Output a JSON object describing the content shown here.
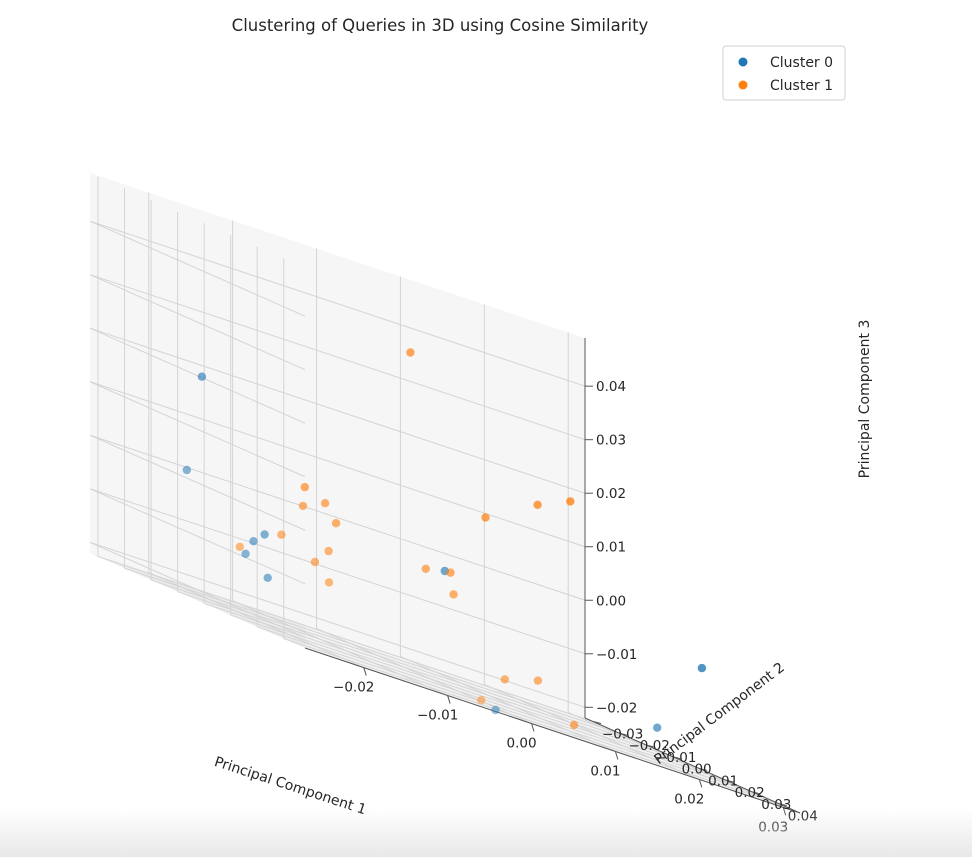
{
  "chart_data": {
    "type": "scatter",
    "title": "Clustering of Queries in 3D using Cosine Similarity",
    "xlabel": "Principal Component 1",
    "ylabel": "Principal Component 2",
    "zlabel": "Principal Component 3",
    "x_ticks": [
      "−0.02",
      "−0.01",
      "0.00",
      "0.01",
      "0.02",
      "0.03"
    ],
    "y_ticks": [
      "−0.03",
      "−0.02",
      "−0.01",
      "0.00",
      "0.01",
      "0.02",
      "0.03",
      "0.04"
    ],
    "z_ticks": [
      "−0.02",
      "−0.01",
      "0.00",
      "0.01",
      "0.02",
      "0.03",
      "0.04"
    ],
    "xlim": [
      -0.027,
      0.032
    ],
    "ylim": [
      -0.033,
      0.048
    ],
    "zlim": [
      -0.022,
      0.049
    ],
    "grid": true,
    "legend_position": "top-right",
    "series": [
      {
        "name": "Cluster 0",
        "color": "#1f77b4",
        "points": [
          {
            "x": -0.026,
            "y": 0.006,
            "z": 0.02
          },
          {
            "x": -0.024,
            "y": -0.006,
            "z": 0.001
          },
          {
            "x": -0.016,
            "y": -0.002,
            "z": -0.006
          },
          {
            "x": -0.017,
            "y": -0.003,
            "z": -0.008
          },
          {
            "x": -0.017,
            "y": -0.006,
            "z": -0.011
          },
          {
            "x": -0.015,
            "y": -0.004,
            "z": -0.014
          },
          {
            "x": 0.002,
            "y": 0.009,
            "z": -0.001
          },
          {
            "x": 0.015,
            "y": -0.013,
            "z": -0.025
          },
          {
            "x": 0.027,
            "y": 0.01,
            "z": -0.017
          },
          {
            "x": 0.026,
            "y": 0.03,
            "z": -0.002
          }
        ]
      },
      {
        "name": "Cluster 1",
        "color": "#ff7f0e",
        "points": [
          {
            "x": -0.004,
            "y": 0.015,
            "z": 0.038
          },
          {
            "x": -0.015,
            "y": 0.01,
            "z": 0.006
          },
          {
            "x": -0.011,
            "y": 0.005,
            "z": 0.004
          },
          {
            "x": -0.013,
            "y": 0.003,
            "z": 0.002
          },
          {
            "x": -0.01,
            "y": 0.006,
            "z": 0.001
          },
          {
            "x": -0.014,
            "y": -0.002,
            "z": -0.005
          },
          {
            "x": -0.009,
            "y": 0.0,
            "z": -0.005
          },
          {
            "x": -0.01,
            "y": -0.002,
            "z": -0.008
          },
          {
            "x": -0.008,
            "y": -0.003,
            "z": -0.011
          },
          {
            "x": -0.018,
            "y": -0.005,
            "z": -0.01
          },
          {
            "x": 0.003,
            "y": 0.008,
            "z": -0.001
          },
          {
            "x": 0.001,
            "y": 0.005,
            "z": -0.002
          },
          {
            "x": 0.004,
            "y": 0.006,
            "z": -0.005
          },
          {
            "x": 0.008,
            "y": 0.025,
            "z": 0.018
          },
          {
            "x": 0.004,
            "y": 0.018,
            "z": 0.012
          },
          {
            "x": 0.01,
            "y": 0.031,
            "z": 0.021
          },
          {
            "x": 0.012,
            "y": 0.0,
            "z": -0.018
          },
          {
            "x": 0.015,
            "y": 0.003,
            "z": -0.016
          },
          {
            "x": 0.019,
            "y": 0.004,
            "z": -0.022
          },
          {
            "x": 0.013,
            "y": -0.012,
            "z": -0.024
          }
        ]
      }
    ]
  }
}
